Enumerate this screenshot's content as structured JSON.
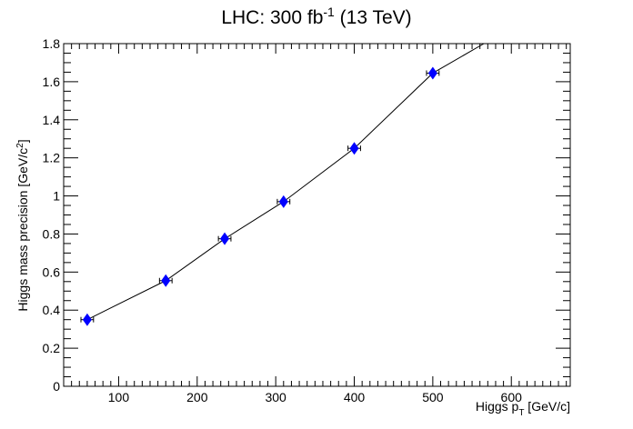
{
  "chart_data": {
    "type": "scatter",
    "title_main": "LHC: 300 fb",
    "title_sup": "-1",
    "title_rest": " (13 TeV)",
    "xlabel_main": "Higgs p",
    "xlabel_sub": "T",
    "xlabel_rest": " [GeV/c]",
    "ylabel_main": "Higgs mass precision [GeV/c",
    "ylabel_sup": "2",
    "ylabel_rest": "]",
    "xlim": [
      30,
      675
    ],
    "ylim": [
      0,
      1.8
    ],
    "xticks": [
      100,
      200,
      300,
      400,
      500,
      600
    ],
    "xtick_labels": [
      "100",
      "200",
      "300",
      "400",
      "500",
      "600"
    ],
    "yticks": [
      0,
      0.2,
      0.4,
      0.6,
      0.8,
      1,
      1.2,
      1.4,
      1.6,
      1.8
    ],
    "ytick_labels": [
      "0",
      "0.2",
      "0.4",
      "0.6",
      "0.8",
      "1",
      "1.2",
      "1.4",
      "1.6",
      "1.8"
    ],
    "grid": false,
    "marker_color": "#0000ff",
    "series": [
      {
        "x": [
          60,
          160,
          235,
          310,
          400,
          500
        ],
        "y": [
          0.35,
          0.555,
          0.775,
          0.97,
          1.25,
          1.645
        ],
        "xerr": [
          8,
          8,
          8,
          8,
          8,
          8
        ]
      }
    ],
    "line": {
      "x": [
        60,
        160,
        235,
        310,
        400,
        500,
        565
      ],
      "y": [
        0.35,
        0.555,
        0.775,
        0.97,
        1.25,
        1.645,
        1.8
      ]
    }
  }
}
